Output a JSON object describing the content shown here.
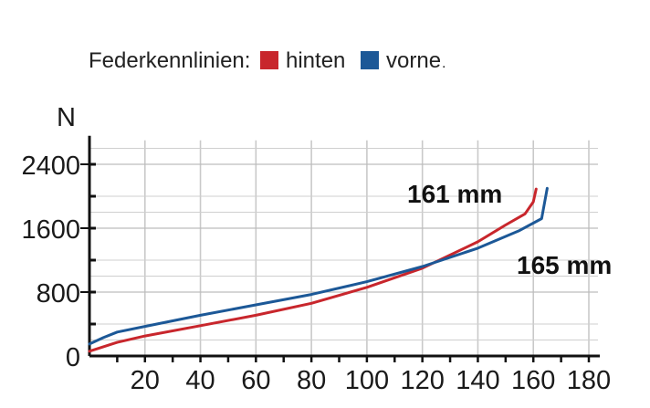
{
  "chart_data": {
    "type": "line",
    "legend": {
      "prefix": "Federkennlinien:",
      "suffix": "."
    },
    "ylabel": "N",
    "xlim": [
      0,
      180
    ],
    "ylim": [
      0,
      2700
    ],
    "x_ticks": [
      20,
      40,
      60,
      80,
      100,
      120,
      140,
      160,
      180
    ],
    "y_ticks": [
      0,
      800,
      1600,
      2400
    ],
    "grid": true,
    "series": [
      {
        "name": "hinten",
        "color": "#c8262c",
        "x": [
          0,
          10,
          20,
          40,
          60,
          80,
          100,
          120,
          140,
          150,
          157,
          160,
          161
        ],
        "y": [
          60,
          170,
          250,
          380,
          510,
          660,
          860,
          1100,
          1430,
          1640,
          1780,
          1930,
          2090
        ]
      },
      {
        "name": "vorne",
        "color": "#1c5897",
        "x": [
          0,
          5,
          10,
          20,
          40,
          60,
          80,
          100,
          120,
          140,
          155,
          163,
          165
        ],
        "y": [
          150,
          230,
          300,
          370,
          510,
          640,
          770,
          930,
          1120,
          1350,
          1570,
          1720,
          2100
        ]
      }
    ],
    "annotations": [
      {
        "text": "161 mm",
        "series": "hinten"
      },
      {
        "text": "165 mm",
        "series": "vorne"
      }
    ]
  }
}
